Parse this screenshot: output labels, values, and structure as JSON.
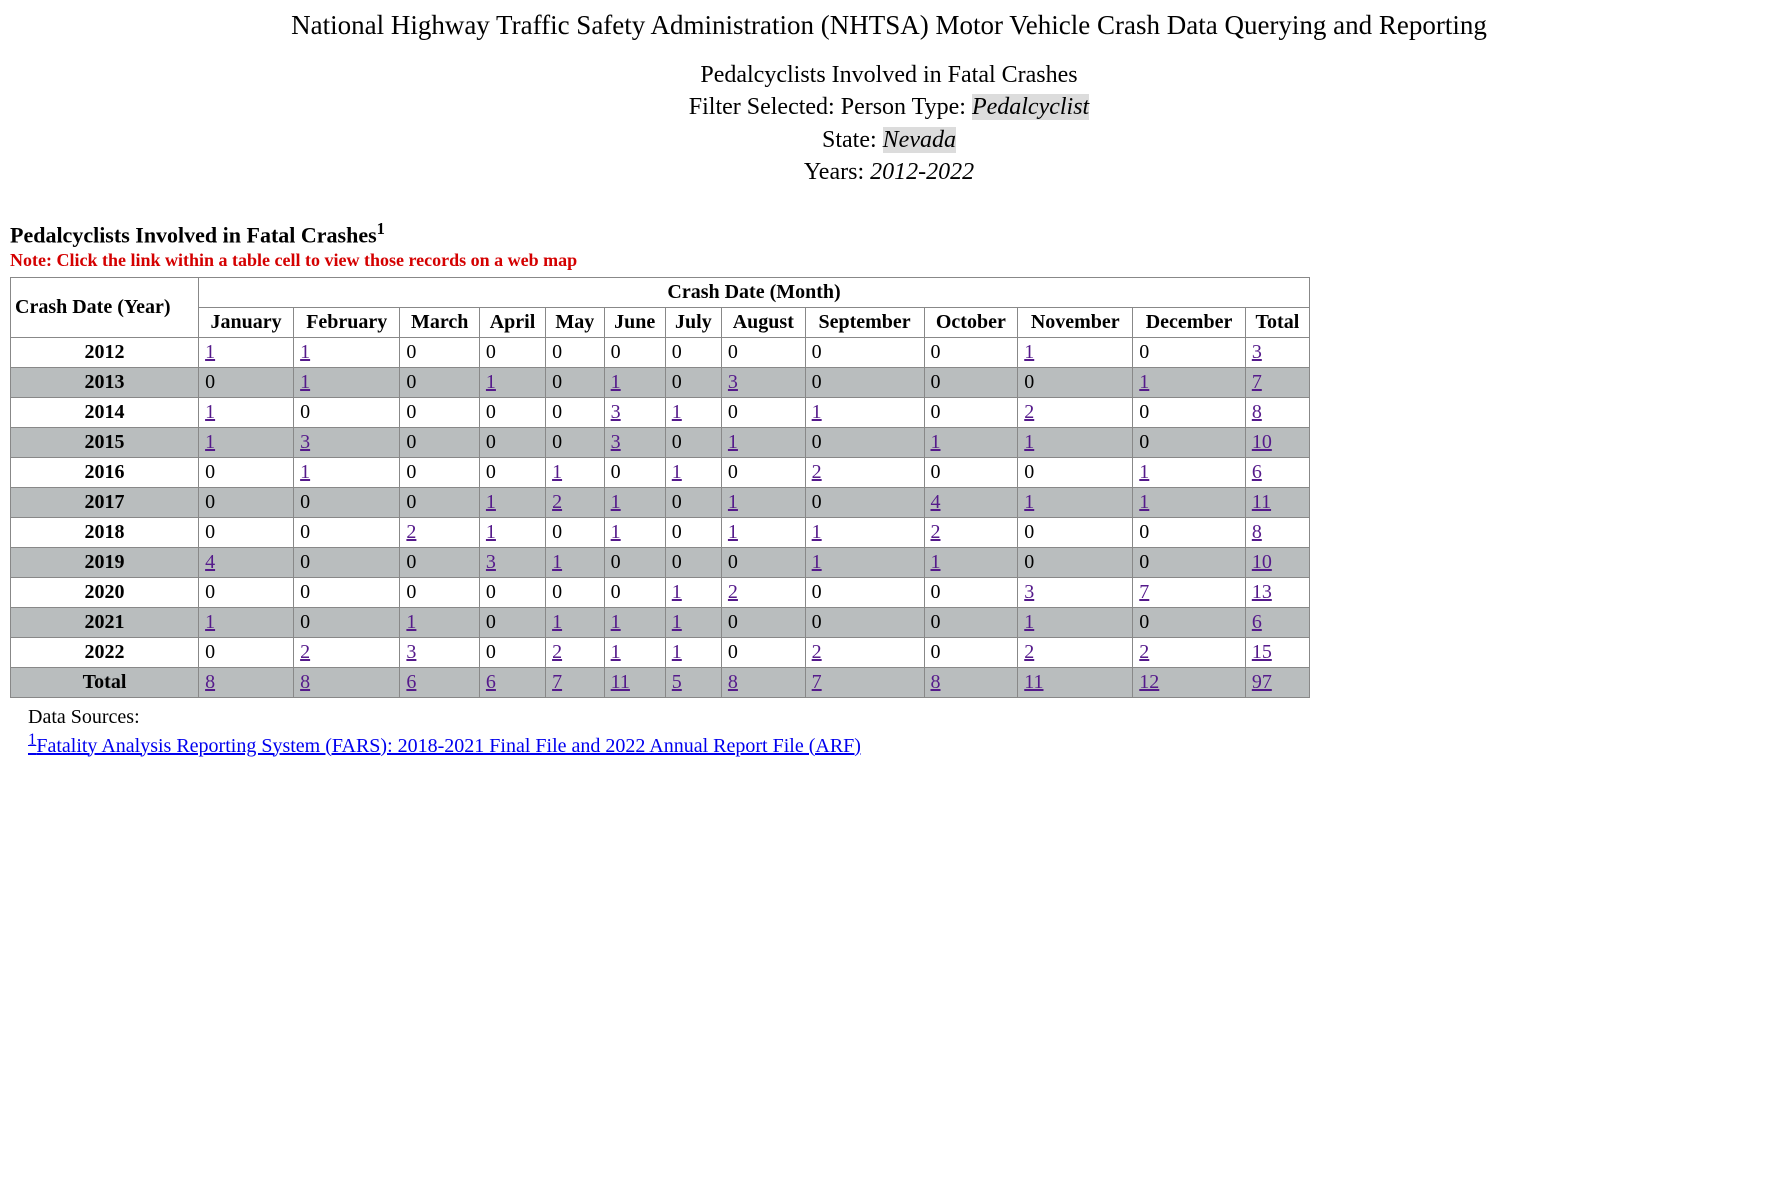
{
  "header": {
    "page_title": "National Highway Traffic Safety Administration (NHTSA) Motor Vehicle Crash Data Querying and Reporting",
    "subtitle": "Pedalcyclists Involved in Fatal Crashes",
    "filter_label": "Filter Selected: Person Type: ",
    "filter_value": "Pedalcyclist",
    "state_label": "State: ",
    "state_value": "Nevada",
    "years_label": "Years: ",
    "years_value": "2012-2022"
  },
  "table": {
    "title": "Pedalcyclists Involved in Fatal Crashes",
    "footnote_marker": "1",
    "note": "Note: Click the link within a table cell to view those records on a web map",
    "year_header": "Crash Date (Year)",
    "month_group_header": "Crash Date (Month)",
    "columns": [
      "January",
      "February",
      "March",
      "April",
      "May",
      "June",
      "July",
      "August",
      "September",
      "October",
      "November",
      "December",
      "Total"
    ],
    "rows": [
      {
        "year": "2012",
        "values": [
          1,
          1,
          0,
          0,
          0,
          0,
          0,
          0,
          0,
          0,
          1,
          0,
          3
        ]
      },
      {
        "year": "2013",
        "values": [
          0,
          1,
          0,
          1,
          0,
          1,
          0,
          3,
          0,
          0,
          0,
          1,
          7
        ]
      },
      {
        "year": "2014",
        "values": [
          1,
          0,
          0,
          0,
          0,
          3,
          1,
          0,
          1,
          0,
          2,
          0,
          8
        ]
      },
      {
        "year": "2015",
        "values": [
          1,
          3,
          0,
          0,
          0,
          3,
          0,
          1,
          0,
          1,
          1,
          0,
          10
        ]
      },
      {
        "year": "2016",
        "values": [
          0,
          1,
          0,
          0,
          1,
          0,
          1,
          0,
          2,
          0,
          0,
          1,
          6
        ]
      },
      {
        "year": "2017",
        "values": [
          0,
          0,
          0,
          1,
          2,
          1,
          0,
          1,
          0,
          4,
          1,
          1,
          11
        ]
      },
      {
        "year": "2018",
        "values": [
          0,
          0,
          2,
          1,
          0,
          1,
          0,
          1,
          1,
          2,
          0,
          0,
          8
        ]
      },
      {
        "year": "2019",
        "values": [
          4,
          0,
          0,
          3,
          1,
          0,
          0,
          0,
          1,
          1,
          0,
          0,
          10
        ]
      },
      {
        "year": "2020",
        "values": [
          0,
          0,
          0,
          0,
          0,
          0,
          1,
          2,
          0,
          0,
          3,
          7,
          13
        ]
      },
      {
        "year": "2021",
        "values": [
          1,
          0,
          1,
          0,
          1,
          1,
          1,
          0,
          0,
          0,
          1,
          0,
          6
        ]
      },
      {
        "year": "2022",
        "values": [
          0,
          2,
          3,
          0,
          2,
          1,
          1,
          0,
          2,
          0,
          2,
          2,
          15
        ]
      }
    ],
    "total_row_label": "Total",
    "totals": [
      8,
      8,
      6,
      6,
      7,
      11,
      5,
      8,
      7,
      8,
      11,
      12,
      97
    ],
    "link_color_visited": "#551a8b",
    "link_color_fresh": "#0000ee",
    "stripe_color": "#b9bdbe"
  },
  "footnotes": {
    "label": "Data Sources:",
    "items": [
      {
        "marker": "1",
        "text": "Fatality Analysis Reporting System (FARS): 2018-2021 Final File and 2022 Annual Report File (ARF)"
      }
    ]
  }
}
